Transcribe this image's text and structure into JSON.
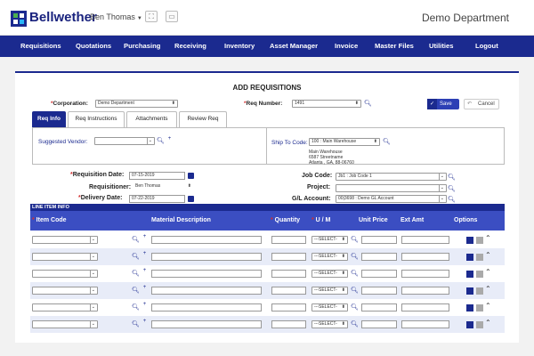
{
  "header": {
    "brand": "Bellwether",
    "user": "Ben Thomas",
    "department": "Demo Department"
  },
  "nav": {
    "items": [
      "Requisitions",
      "Quotations",
      "Purchasing",
      "Receiving",
      "Inventory",
      "Asset Manager",
      "Invoice",
      "Master Files",
      "Utilities",
      "Logout"
    ]
  },
  "form": {
    "title": "ADD REQUISITIONS",
    "corporation_label": "Corporation:",
    "corporation_value": "Demo Department",
    "req_number_label": "Req Number:",
    "req_number_value": "1491",
    "save_label": "Save",
    "cancel_label": "Cancel",
    "tabs": [
      "Req Info",
      "Req Instructions",
      "Attachments",
      "Review Req"
    ],
    "suggested_vendor_label": "Suggested Vendor:",
    "suggested_vendor_value": "",
    "ship_to_label": "Ship To Code:",
    "ship_to_value": "100 : Main Warehouse",
    "ship_address": [
      "Main Warehouse",
      "6587 Streetname",
      "Atlanta , GA, 88-06760"
    ],
    "requisition_date_label": "Requisition Date:",
    "requisition_date_value": "07-15-2019",
    "requisitioner_label": "Requisitioner:",
    "requisitioner_value": "Ben Thomas",
    "delivery_date_label": "Delivery Date:",
    "delivery_date_value": "07-22-2019",
    "job_code_label": "Job Code:",
    "job_code_value": "Jb1 : Job Code 1",
    "project_label": "Project:",
    "project_value": "",
    "gl_account_label": "G/L Account:",
    "gl_account_value": "00|3698 : Demo GL Account"
  },
  "line_items": {
    "section_label": "LINE ITEM INFO",
    "columns": {
      "item_code": "Item Code",
      "material": "Material Description",
      "quantity": "Quantity",
      "um": "U / M",
      "unit_price": "Unit Price",
      "ext_amt": "Ext Amt",
      "options": "Options"
    },
    "um_placeholder": "---SELECT-",
    "add_label": "Add",
    "rows": [
      {},
      {},
      {},
      {},
      {},
      {}
    ]
  },
  "colors": {
    "nav_bg": "#1b2a8f",
    "header_row_bg": "#3b4ec2",
    "required": "#d32f2f"
  }
}
